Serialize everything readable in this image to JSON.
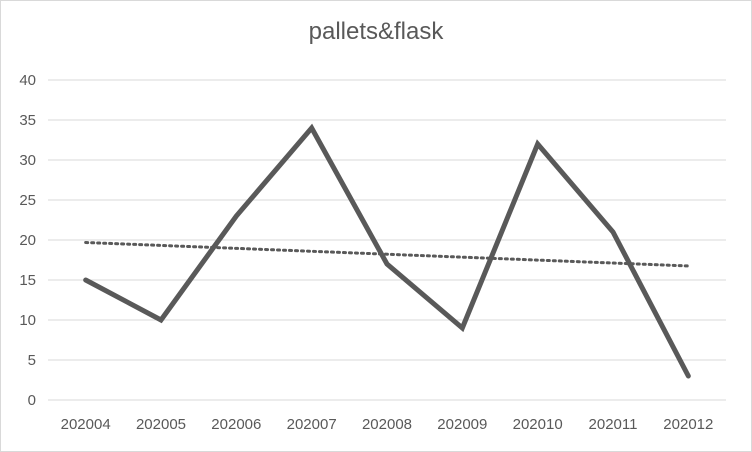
{
  "chart_data": {
    "type": "line",
    "title": "pallets&flask",
    "categories": [
      "202004",
      "202005",
      "202006",
      "202007",
      "202008",
      "202009",
      "202010",
      "202011",
      "202012"
    ],
    "series": [
      {
        "values": [
          15,
          10,
          23,
          34,
          17,
          9,
          32,
          21,
          3
        ],
        "color": "#595959"
      }
    ],
    "trendline": {
      "type": "linear",
      "style": "dotted",
      "color": "#595959"
    },
    "xlabel": "",
    "ylabel": "",
    "ylim": [
      0,
      40
    ],
    "yticks": [
      0,
      5,
      10,
      15,
      20,
      25,
      30,
      35,
      40
    ],
    "grid": true,
    "legend": "none"
  }
}
